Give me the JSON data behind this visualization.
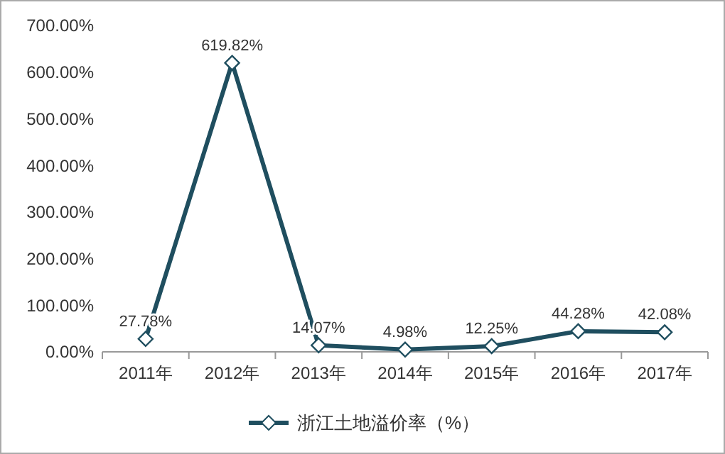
{
  "chart_data": {
    "type": "line",
    "categories": [
      "2011年",
      "2012年",
      "2013年",
      "2014年",
      "2015年",
      "2016年",
      "2017年"
    ],
    "series": [
      {
        "name": "浙江土地溢价率（%）",
        "color": "#1f4e5f",
        "values": [
          27.78,
          619.82,
          14.07,
          4.98,
          12.25,
          44.28,
          42.08
        ],
        "value_labels": [
          "27.78%",
          "619.82%",
          "14.07%",
          "4.98%",
          "12.25%",
          "44.28%",
          "42.08%"
        ]
      }
    ],
    "ylim": [
      0,
      700
    ],
    "yticks": [
      {
        "value": 0,
        "label": "0.00%"
      },
      {
        "value": 100,
        "label": "100.00%"
      },
      {
        "value": 200,
        "label": "200.00%"
      },
      {
        "value": 300,
        "label": "300.00%"
      },
      {
        "value": 400,
        "label": "400.00%"
      },
      {
        "value": 500,
        "label": "500.00%"
      },
      {
        "value": 600,
        "label": "600.00%"
      },
      {
        "value": 700,
        "label": "700.00%"
      }
    ],
    "legend": "bottom",
    "marker": "diamond",
    "grid": false
  }
}
